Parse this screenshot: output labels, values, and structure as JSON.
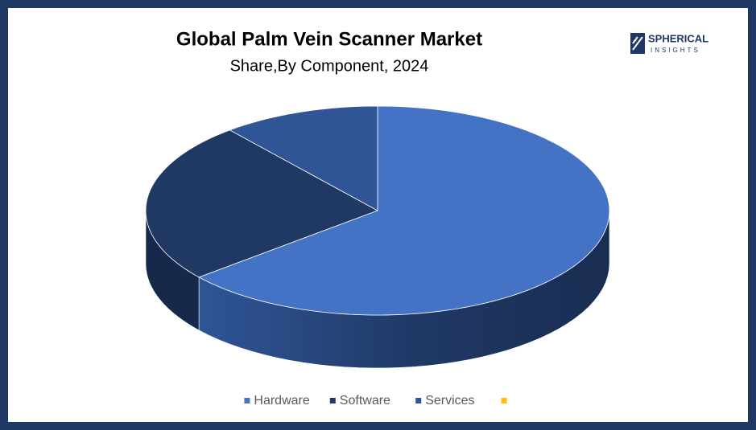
{
  "chart_data": {
    "type": "pie3d",
    "title": "Global Palm Vein Scanner Market",
    "subtitle": "Share,By Component,  2024",
    "categories": [
      "Hardware",
      "Software",
      "Services",
      null
    ],
    "values": [
      64,
      25,
      11,
      0
    ],
    "colors": [
      "#4472c4",
      "#203864",
      "#2f5597",
      "#ffc000"
    ],
    "legend": "bottom"
  },
  "logo": {
    "line1": "SPHERICAL",
    "line2": "INSIGHTS"
  }
}
